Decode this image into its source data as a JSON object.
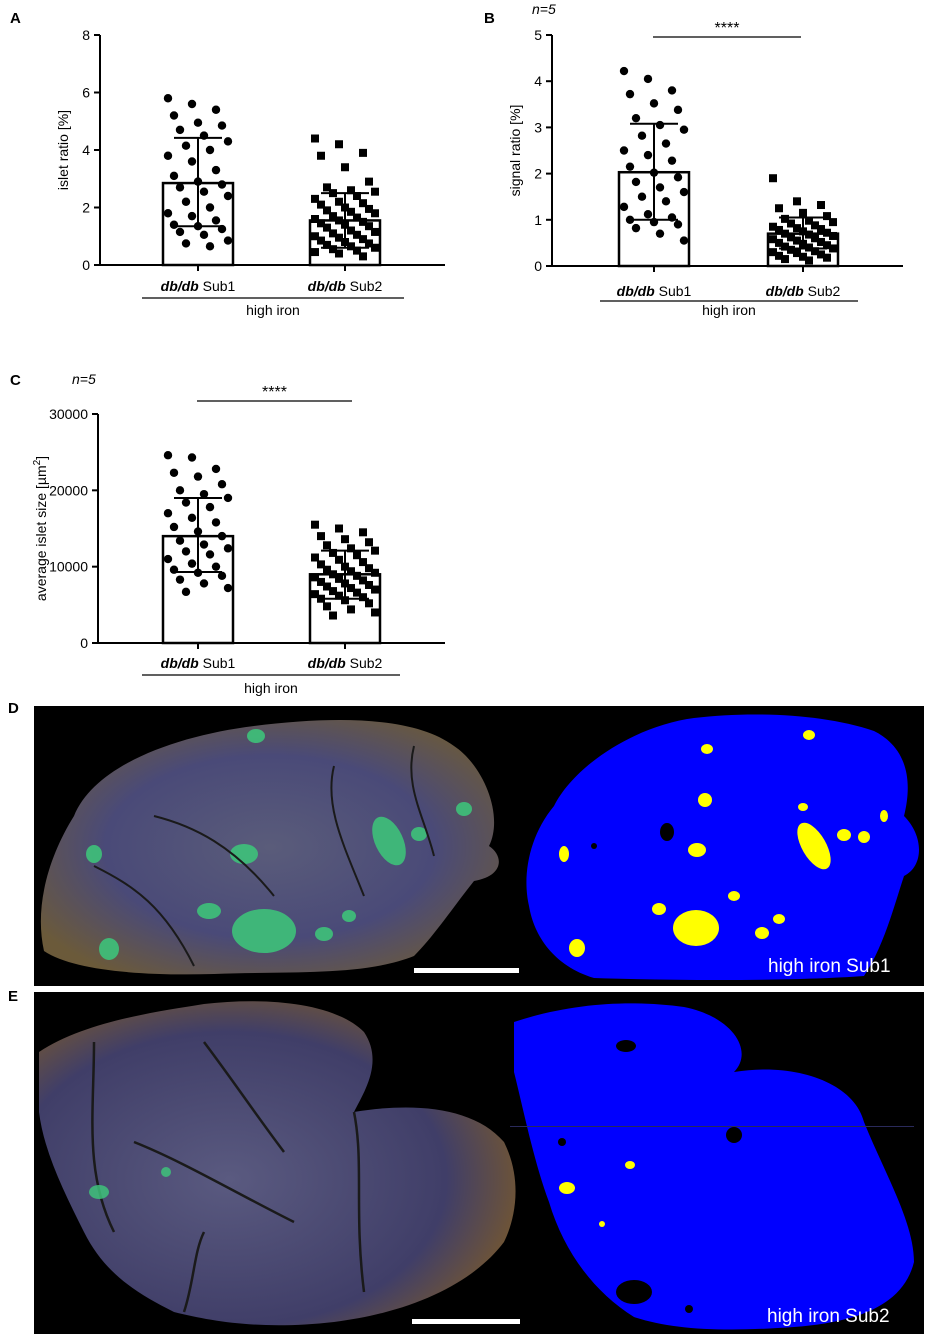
{
  "panels": {
    "A": "A",
    "B": "B",
    "C": "C",
    "D": "D",
    "E": "E"
  },
  "chart_data": [
    {
      "id": "A",
      "type": "bar",
      "ylabel": "islet ratio [%]",
      "ylim": [
        0,
        8
      ],
      "yticks": [
        "0",
        "2",
        "4",
        "6",
        "8"
      ],
      "categories": [
        {
          "italic": "db/db",
          "plain": " Sub1"
        },
        {
          "italic": "db/db",
          "plain": " Sub2"
        }
      ],
      "group_label": "high iron",
      "n_label": "",
      "significance": "",
      "bars": [
        {
          "mean": 2.85,
          "sd_low": 1.35,
          "sd_high": 4.42,
          "marker": "circle",
          "points": [
            5.8,
            5.6,
            5.4,
            5.2,
            4.95,
            4.85,
            4.7,
            4.5,
            4.3,
            4.15,
            4.0,
            3.8,
            3.6,
            3.3,
            3.1,
            2.9,
            2.8,
            2.7,
            2.55,
            2.4,
            2.2,
            2.0,
            1.8,
            1.7,
            1.55,
            1.4,
            1.35,
            1.25,
            1.15,
            1.05,
            0.85,
            0.75,
            0.65
          ]
        },
        {
          "mean": 1.55,
          "sd_low": 0.6,
          "sd_high": 2.5,
          "marker": "square",
          "points": [
            4.4,
            4.2,
            3.9,
            3.8,
            3.4,
            2.9,
            2.7,
            2.6,
            2.55,
            2.5,
            2.4,
            2.3,
            2.2,
            2.15,
            2.1,
            2.0,
            1.95,
            1.9,
            1.85,
            1.8,
            1.7,
            1.65,
            1.6,
            1.55,
            1.5,
            1.45,
            1.4,
            1.35,
            1.3,
            1.2,
            1.15,
            1.1,
            1.05,
            1.0,
            0.95,
            0.9,
            0.85,
            0.8,
            0.75,
            0.7,
            0.65,
            0.6,
            0.55,
            0.5,
            0.45,
            0.4,
            0.3
          ]
        }
      ]
    },
    {
      "id": "B",
      "type": "bar",
      "ylabel": "signal ratio [%]",
      "ylim": [
        0,
        5
      ],
      "yticks": [
        "0",
        "1",
        "2",
        "3",
        "4",
        "5"
      ],
      "categories": [
        {
          "italic": "db/db",
          "plain": " Sub1"
        },
        {
          "italic": "db/db",
          "plain": " Sub2"
        }
      ],
      "group_label": "high iron",
      "n_label": "n=5",
      "significance": "****",
      "bars": [
        {
          "mean": 2.03,
          "sd_low": 1.0,
          "sd_high": 3.08,
          "marker": "circle",
          "points": [
            4.22,
            4.05,
            3.8,
            3.72,
            3.52,
            3.38,
            3.2,
            3.05,
            2.95,
            2.82,
            2.65,
            2.5,
            2.4,
            2.28,
            2.15,
            2.02,
            1.92,
            1.82,
            1.7,
            1.6,
            1.5,
            1.4,
            1.28,
            1.12,
            1.05,
            1.0,
            0.95,
            0.9,
            0.82,
            0.7,
            0.55
          ]
        },
        {
          "mean": 0.7,
          "sd_low": 0.38,
          "sd_high": 1.05,
          "marker": "square",
          "points": [
            1.9,
            1.4,
            1.32,
            1.25,
            1.15,
            1.08,
            1.02,
            0.98,
            0.95,
            0.92,
            0.88,
            0.85,
            0.82,
            0.8,
            0.78,
            0.75,
            0.72,
            0.7,
            0.68,
            0.65,
            0.62,
            0.6,
            0.58,
            0.55,
            0.52,
            0.5,
            0.48,
            0.45,
            0.42,
            0.4,
            0.38,
            0.35,
            0.32,
            0.3,
            0.28,
            0.25,
            0.22,
            0.2,
            0.18,
            0.15,
            0.12
          ]
        }
      ]
    },
    {
      "id": "C",
      "type": "bar",
      "ylabel": "average islet size [µm²]",
      "ylim": [
        0,
        30000
      ],
      "yticks": [
        "0",
        "10000",
        "20000",
        "30000"
      ],
      "categories": [
        {
          "italic": "db/db",
          "plain": " Sub1"
        },
        {
          "italic": "db/db",
          "plain": " Sub2"
        }
      ],
      "group_label": "high iron",
      "n_label": "n=5",
      "significance": "****",
      "bars": [
        {
          "mean": 14000,
          "sd_low": 9300,
          "sd_high": 19000,
          "marker": "circle",
          "points": [
            24600,
            24300,
            22800,
            22300,
            21800,
            20800,
            20000,
            19500,
            19000,
            18400,
            17800,
            17000,
            16400,
            15800,
            15200,
            14600,
            14000,
            13400,
            12900,
            12400,
            12000,
            11600,
            11000,
            10400,
            10000,
            9600,
            9200,
            8800,
            8300,
            7800,
            7200,
            6700
          ]
        },
        {
          "mean": 9000,
          "sd_low": 5800,
          "sd_high": 12100,
          "marker": "square",
          "points": [
            15500,
            15000,
            14500,
            14000,
            13600,
            13200,
            12800,
            12400,
            12100,
            11800,
            11500,
            11200,
            10900,
            10600,
            10300,
            10000,
            9800,
            9600,
            9400,
            9200,
            9000,
            8800,
            8600,
            8400,
            8200,
            8000,
            7800,
            7600,
            7400,
            7200,
            7000,
            6800,
            6600,
            6400,
            6200,
            6000,
            5800,
            5600,
            5200,
            4800,
            4400,
            4000,
            3600
          ]
        }
      ]
    }
  ],
  "micrographs": {
    "D": {
      "label": "high iron Sub1"
    },
    "E": {
      "label": "high iron Sub2"
    }
  },
  "colors": {
    "mask_blue": "#0000ff",
    "islet_yellow": "#ffff00",
    "bar_stroke": "#000000"
  }
}
